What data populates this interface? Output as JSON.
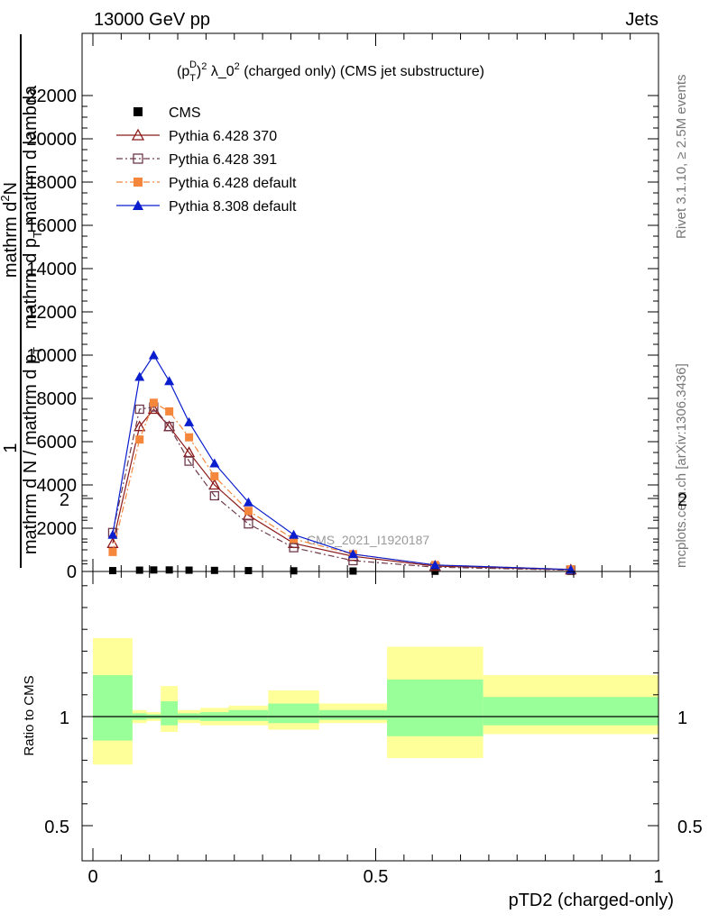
{
  "header": {
    "left": "13000 GeV pp",
    "right": "Jets"
  },
  "side_labels": {
    "top": "Rivet 3.1.10, ≥ 2.5M events",
    "bottom": "mcplots.cern.ch [arXiv:1306.3436]"
  },
  "chart_data": [
    {
      "type": "line",
      "title": "(pTD)² λ_0² (charged only) (CMS jet substructure)",
      "title_parts": {
        "p": "(p",
        "sup": "D",
        "sub": "T",
        "close": ")",
        "exp1": "2",
        "lambda": " λ_0",
        "exp2": "2",
        "rest": " (charged only) (CMS jet substructure)"
      },
      "ylabel_parts": {
        "one": "1",
        "den": "mathrm d N / mathrm d p",
        "den_sub": "T",
        "num": "mathrm d",
        "num_sup": "2",
        "num_tail": "N",
        "den2": "mathrm d p",
        "den2_sub": "T",
        "den2_tail": " mathrm d lambda"
      },
      "watermark": "CMS_2021_I1920187",
      "ylim": [
        0,
        22500
      ],
      "y_ticks": [
        0,
        2000,
        4000,
        6000,
        8000,
        10000,
        12000,
        14000,
        16000,
        18000,
        20000,
        22000
      ],
      "y_tick_labels": [
        "0",
        "2000",
        "4000",
        "6000",
        "8000",
        "10000",
        "12000",
        "14000",
        "16000",
        "18000",
        "20000",
        "22000"
      ],
      "xlim": [
        0,
        1
      ],
      "bin_edges": [
        0.0,
        0.07,
        0.095,
        0.12,
        0.15,
        0.19,
        0.24,
        0.31,
        0.4,
        0.52,
        0.69,
        1.0
      ],
      "x": [
        0.035,
        0.0825,
        0.1075,
        0.135,
        0.17,
        0.215,
        0.275,
        0.355,
        0.46,
        0.605,
        0.845
      ],
      "series": [
        {
          "name": "CMS",
          "color": "#000000",
          "marker": "filled-square",
          "line": "none",
          "values": [
            40,
            60,
            70,
            70,
            60,
            50,
            40,
            30,
            20,
            10,
            5
          ]
        },
        {
          "name": "Pythia 6.428 370",
          "color": "#8b1a1a",
          "marker": "open-triangle",
          "line": "solid",
          "values": [
            1300,
            6700,
            7500,
            6700,
            5500,
            4000,
            2600,
            1300,
            700,
            250,
            80
          ]
        },
        {
          "name": "Pythia 6.428 391",
          "color": "#6e3a4a",
          "marker": "open-square",
          "line": "dashdot",
          "values": [
            1800,
            7500,
            7600,
            6700,
            5100,
            3500,
            2200,
            1100,
            500,
            200,
            60
          ]
        },
        {
          "name": "Pythia 6.428 default",
          "color": "#f5873c",
          "marker": "filled-square",
          "line": "dashdot",
          "values": [
            900,
            6100,
            7800,
            7400,
            6200,
            4400,
            2800,
            1500,
            800,
            300,
            100
          ]
        },
        {
          "name": "Pythia 8.308 default",
          "color": "#0a1ecd",
          "marker": "filled-triangle",
          "line": "solid",
          "values": [
            1700,
            9000,
            10000,
            8800,
            6900,
            5000,
            3200,
            1700,
            800,
            300,
            90
          ]
        }
      ]
    },
    {
      "type": "area",
      "ylabel": "Ratio to CMS",
      "ylim": [
        0.32,
        2.3
      ],
      "y_ticks": [
        0.5,
        1,
        2
      ],
      "y_tick_labels": [
        "0.5",
        "1",
        "2"
      ],
      "xlim": [
        0,
        1
      ],
      "x_ticks": [
        0,
        0.5,
        1
      ],
      "x_tick_labels": [
        "0",
        "0.5",
        "1"
      ],
      "xlabel": "pTD2 (charged-only)",
      "reference": 1,
      "bin_edges": [
        0.0,
        0.07,
        0.095,
        0.12,
        0.15,
        0.19,
        0.24,
        0.31,
        0.4,
        0.52,
        0.69,
        1.0
      ],
      "band_outer": {
        "color": "#ffff99",
        "low": [
          0.78,
          0.97,
          0.98,
          0.93,
          0.97,
          0.96,
          0.96,
          0.94,
          0.97,
          0.81,
          0.92
        ],
        "high": [
          1.36,
          1.03,
          1.02,
          1.14,
          1.03,
          1.04,
          1.05,
          1.12,
          1.06,
          1.32,
          1.19
        ]
      },
      "band_inner": {
        "color": "#99ff99",
        "low": [
          0.89,
          0.985,
          0.99,
          0.96,
          0.985,
          0.98,
          0.98,
          0.97,
          0.985,
          0.91,
          0.96
        ],
        "high": [
          1.19,
          1.015,
          1.01,
          1.07,
          1.015,
          1.02,
          1.03,
          1.06,
          1.03,
          1.17,
          1.09
        ]
      }
    }
  ]
}
